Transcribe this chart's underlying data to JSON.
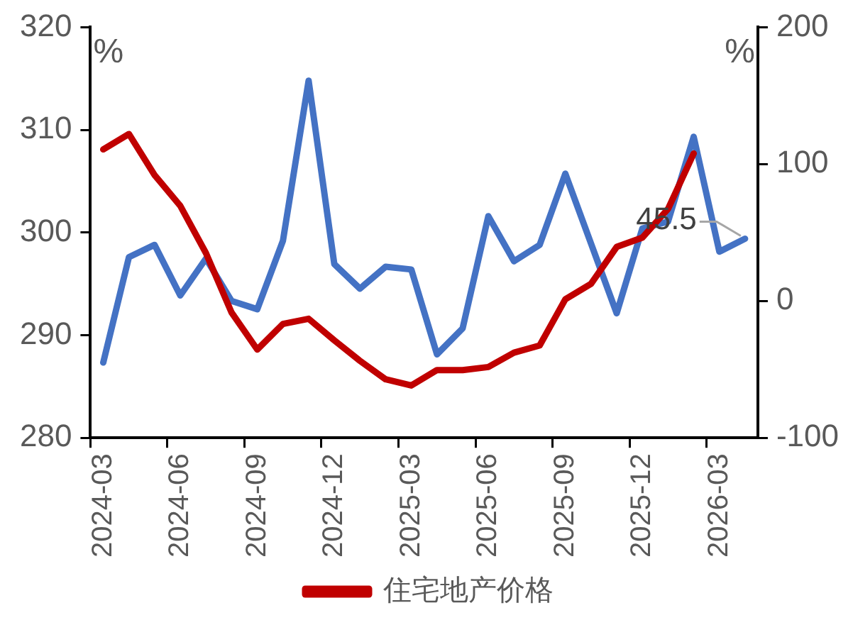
{
  "chart_data": {
    "type": "line",
    "categories": [
      "2024-03",
      null,
      null,
      "2024-06",
      null,
      null,
      "2024-09",
      null,
      null,
      "2024-12",
      null,
      null,
      "2025-03",
      null,
      null,
      "2025-06",
      null,
      null,
      "2025-09",
      null,
      null,
      "2025-12",
      null,
      null,
      "2026-03",
      null
    ],
    "series": [
      {
        "name": "住宅地产价格",
        "color": "#c00000",
        "values": [
          308.1,
          309.6,
          305.6,
          302.6,
          298.0,
          292.2,
          288.6,
          291.1,
          291.6,
          289.5,
          287.5,
          285.7,
          285.1,
          286.6,
          286.6,
          286.9,
          288.3,
          289.0,
          293.5,
          295.0,
          298.6,
          299.5,
          302.3,
          307.7,
          null,
          null
        ]
      },
      {
        "color": "#4472c4",
        "axis": "y2",
        "values": [
          -45,
          32,
          41,
          4,
          31,
          0,
          -6,
          44,
          161,
          27,
          9,
          25,
          23,
          -39,
          -20,
          62,
          29,
          41,
          93,
          42,
          -9,
          53,
          58,
          120,
          36,
          45.5
        ],
        "value_labels": [
          null,
          null,
          null,
          null,
          null,
          null,
          null,
          null,
          null,
          null,
          null,
          null,
          null,
          null,
          null,
          null,
          null,
          null,
          null,
          null,
          null,
          null,
          null,
          null,
          null,
          "45.5"
        ]
      }
    ],
    "ylabel": "%",
    "y2label": "%",
    "ylim": [
      280,
      320
    ],
    "yticks": [
      280,
      290,
      300,
      310,
      320
    ],
    "y2lim": [
      -100,
      200
    ],
    "y2ticks": [
      -100,
      0,
      100,
      200
    ],
    "grid": false,
    "legend": "bottom",
    "marker": "none",
    "line_style": "solid"
  }
}
